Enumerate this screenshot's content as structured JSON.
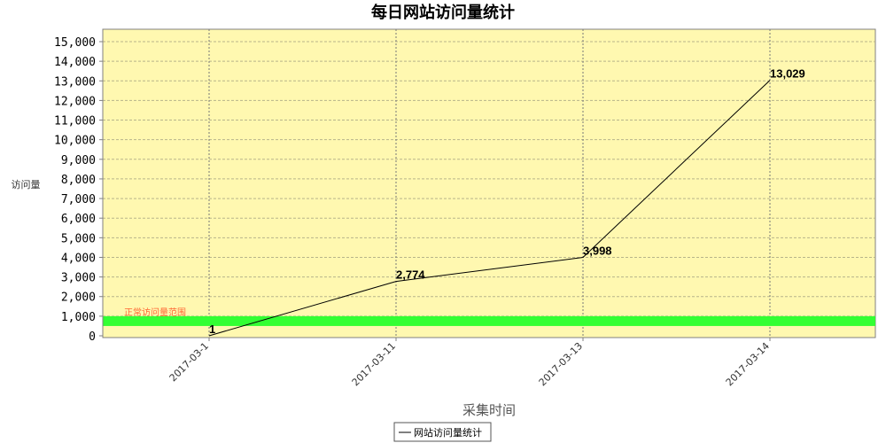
{
  "chart_data": {
    "type": "line",
    "title": "每日网站访问量统计",
    "xlabel": "采集时间",
    "ylabel": "访问量",
    "categories": [
      "2017-03-1",
      "2017-03-11",
      "2017-03-13",
      "2017-03-14"
    ],
    "series": [
      {
        "name": "网站访问量统计",
        "values": [
          1,
          2774,
          3998,
          13029
        ],
        "color": "#000000"
      }
    ],
    "data_labels": [
      "1",
      "2,774",
      "3,998",
      "13,029"
    ],
    "ylim": [
      0,
      15000
    ],
    "yticks": [
      0,
      1000,
      2000,
      3000,
      4000,
      5000,
      6000,
      7000,
      8000,
      9000,
      10000,
      11000,
      12000,
      13000,
      14000,
      15000
    ],
    "ytick_labels": [
      "0",
      "1,000",
      "2,000",
      "3,000",
      "4,000",
      "5,000",
      "6,000",
      "7,000",
      "8,000",
      "9,000",
      "10,000",
      "11,000",
      "12,000",
      "13,000",
      "14,000",
      "15,000"
    ],
    "band": {
      "label": "正常访问量范围",
      "from": 500,
      "to": 1000,
      "color": "#33ff33",
      "label_color": "#ff6633"
    },
    "grid": true,
    "legend": "bottom-center",
    "colors": {
      "plot_background": "#fff8b0",
      "grid": "#b8b48a"
    }
  }
}
